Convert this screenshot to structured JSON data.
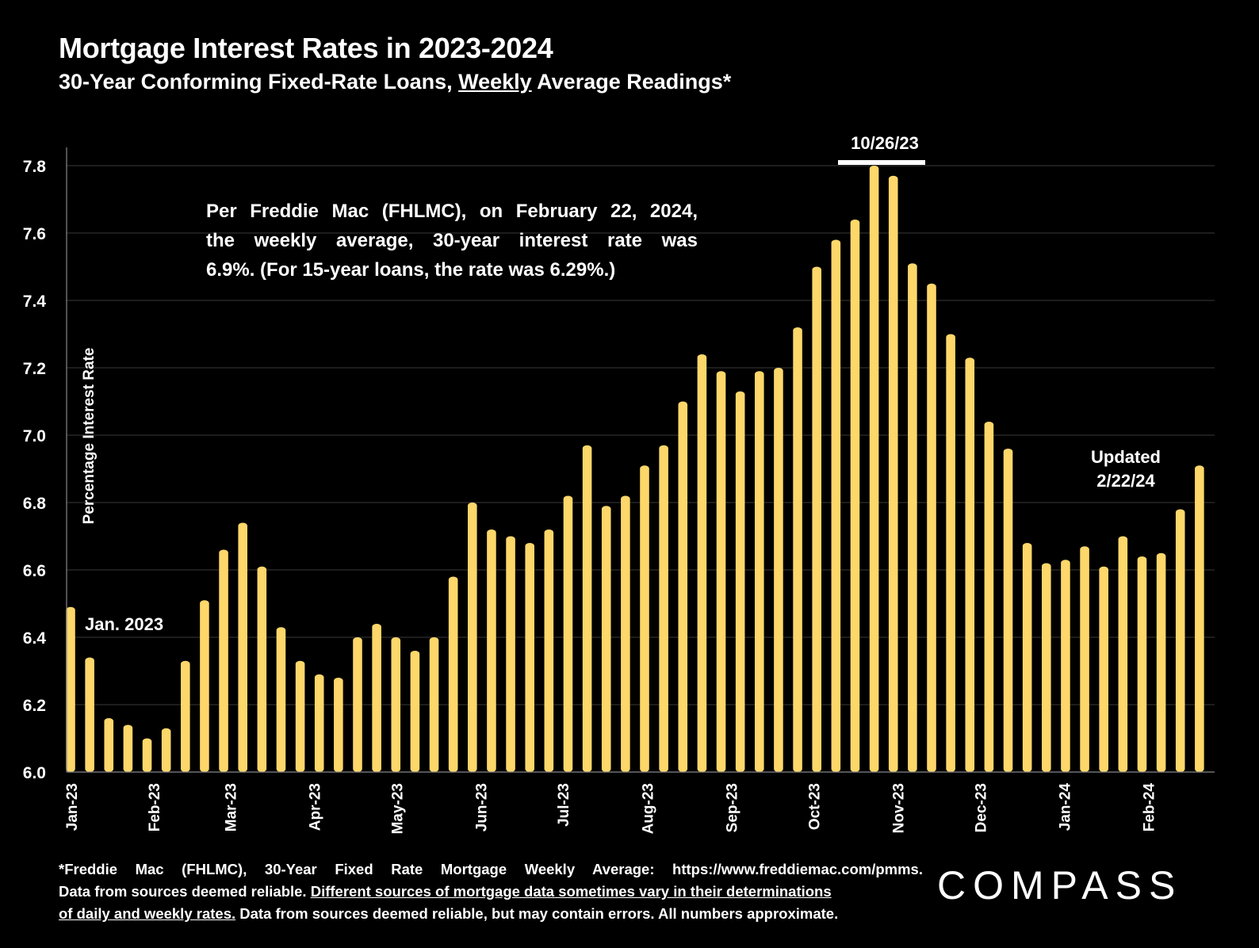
{
  "header": {
    "title": "Mortgage Interest Rates in 2023-2024",
    "subtitle_pre": "30-Year Conforming Fixed-Rate Loans, ",
    "subtitle_emph": "Weekly",
    "subtitle_post": " Average Readings*"
  },
  "annotation": {
    "line1": "Per Freddie Mac (FHLMC), on February 22, 2024,",
    "line2": "the weekly average, 30-year interest rate was",
    "line3": "6.9%. (For 15-year loans, the rate was 6.29%.)"
  },
  "updated": {
    "line1": "Updated",
    "line2": "2/22/24"
  },
  "footnote": {
    "line1": "*Freddie Mac (FHLMC), 30-Year Fixed Rate Mortgage Weekly Average:  https://www.freddiemac.com/pmms.",
    "line2_pre": "Data from sources deemed reliable. ",
    "line2_u": "Different sources of mortgage data sometimes vary in their determinations",
    "line3_u": "of daily and weekly rates.",
    "line3_post": " Data from sources deemed reliable, but may contain errors. All numbers approximate."
  },
  "logo": {
    "text": "COMPASS"
  },
  "chart_data": {
    "type": "bar",
    "title": "Mortgage Interest Rates in 2023-2024",
    "ylabel": "Percentage Interest  Rate",
    "xlabel": "",
    "ylim": [
      6.0,
      7.8
    ],
    "yticks": [
      "6.0",
      "6.2",
      "6.4",
      "6.6",
      "6.8",
      "7.0",
      "7.2",
      "7.4",
      "7.6",
      "7.8"
    ],
    "grid": true,
    "bar_color": "#FDD76A",
    "x_month_labels": [
      {
        "label": "Jan-23",
        "index": 0
      },
      {
        "label": "Feb-23",
        "index": 4.3
      },
      {
        "label": "Mar-23",
        "index": 8.3
      },
      {
        "label": "Apr-23",
        "index": 12.7
      },
      {
        "label": "May-23",
        "index": 17.0
      },
      {
        "label": "Jun-23",
        "index": 21.4
      },
      {
        "label": "Jul-23",
        "index": 25.7
      },
      {
        "label": "Aug-23",
        "index": 30.1
      },
      {
        "label": "Sep-23",
        "index": 34.5
      },
      {
        "label": "Oct-23",
        "index": 38.8
      },
      {
        "label": "Nov-23",
        "index": 43.2
      },
      {
        "label": "Dec-23",
        "index": 47.5
      },
      {
        "label": "Jan-24",
        "index": 51.9
      },
      {
        "label": "Feb-24",
        "index": 56.3
      }
    ],
    "values": [
      6.49,
      6.34,
      6.16,
      6.14,
      6.1,
      6.13,
      6.33,
      6.51,
      6.66,
      6.74,
      6.61,
      6.43,
      6.33,
      6.29,
      6.28,
      6.4,
      6.44,
      6.4,
      6.36,
      6.4,
      6.58,
      6.8,
      6.72,
      6.7,
      6.68,
      6.72,
      6.82,
      6.97,
      6.79,
      6.82,
      6.91,
      6.97,
      7.1,
      7.24,
      7.19,
      7.13,
      7.19,
      7.2,
      7.32,
      7.5,
      7.58,
      7.64,
      7.8,
      7.77,
      7.51,
      7.45,
      7.3,
      7.23,
      7.04,
      6.96,
      6.68,
      6.62,
      6.63,
      6.67,
      6.61,
      6.7,
      6.64,
      6.65,
      6.78,
      6.91
    ],
    "annotations": [
      {
        "text": "Jan. 2023",
        "index": 1
      },
      {
        "text": "10/26/23",
        "index": 42
      }
    ]
  }
}
